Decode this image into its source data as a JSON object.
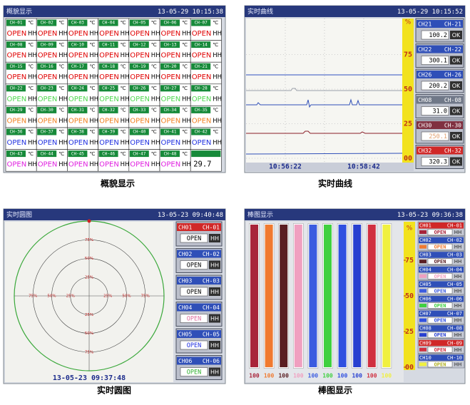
{
  "overview": {
    "title": "概貌显示",
    "time": "13-05-29 10:15:38",
    "caption": "概貌显示",
    "value_colors": [
      "#e00000",
      "#e00000",
      "#e00000",
      "#50d850",
      "#f08020",
      "#2030e0",
      "#e020e0"
    ],
    "channels": [
      {
        "name": "CH-01",
        "unit": "℃",
        "value": "OPEN",
        "alarm": "HH"
      },
      {
        "name": "CH-02",
        "unit": "℃",
        "value": "OPEN",
        "alarm": "HH"
      },
      {
        "name": "CH-03",
        "unit": "℃",
        "value": "OPEN",
        "alarm": "HH"
      },
      {
        "name": "CH-04",
        "unit": "℃",
        "value": "OPEN",
        "alarm": "HH"
      },
      {
        "name": "CH-05",
        "unit": "℃",
        "value": "OPEN",
        "alarm": "HH"
      },
      {
        "name": "CH-06",
        "unit": "℃",
        "value": "OPEN",
        "alarm": "HH"
      },
      {
        "name": "CH-07",
        "unit": "℃",
        "value": "OPEN",
        "alarm": "HH"
      },
      {
        "name": "CH-08",
        "unit": "℃",
        "value": "OPEN",
        "alarm": "HH"
      },
      {
        "name": "CH-09",
        "unit": "℃",
        "value": "OPEN",
        "alarm": "HH"
      },
      {
        "name": "CH-10",
        "unit": "℃",
        "value": "OPEN",
        "alarm": "HH"
      },
      {
        "name": "CH-11",
        "unit": "℃",
        "value": "OPEN",
        "alarm": "HH"
      },
      {
        "name": "CH-12",
        "unit": "℃",
        "value": "OPEN",
        "alarm": "HH"
      },
      {
        "name": "CH-13",
        "unit": "℃",
        "value": "OPEN",
        "alarm": "HH"
      },
      {
        "name": "CH-14",
        "unit": "℃",
        "value": "OPEN",
        "alarm": "HH"
      },
      {
        "name": "CH-15",
        "unit": "℃",
        "value": "OPEN",
        "alarm": "HH"
      },
      {
        "name": "CH-16",
        "unit": "℃",
        "value": "OPEN",
        "alarm": "HH"
      },
      {
        "name": "CH-17",
        "unit": "℃",
        "value": "OPEN",
        "alarm": "HH"
      },
      {
        "name": "CH-18",
        "unit": "℃",
        "value": "OPEN",
        "alarm": "HH"
      },
      {
        "name": "CH-19",
        "unit": "℃",
        "value": "OPEN",
        "alarm": "HH"
      },
      {
        "name": "CH-20",
        "unit": "℃",
        "value": "OPEN",
        "alarm": "HH"
      },
      {
        "name": "CH-21",
        "unit": "℃",
        "value": "OPEN",
        "alarm": "HH"
      },
      {
        "name": "CH-22",
        "unit": "℃",
        "value": "OPEN",
        "alarm": "HH"
      },
      {
        "name": "CH-23",
        "unit": "℃",
        "value": "OPEN",
        "alarm": "HH"
      },
      {
        "name": "CH-24",
        "unit": "℃",
        "value": "OPEN",
        "alarm": "HH"
      },
      {
        "name": "CH-25",
        "unit": "℃",
        "value": "OPEN",
        "alarm": "HH"
      },
      {
        "name": "CH-26",
        "unit": "℃",
        "value": "OPEN",
        "alarm": "HH"
      },
      {
        "name": "CH-27",
        "unit": "℃",
        "value": "OPEN",
        "alarm": "HH"
      },
      {
        "name": "CH-28",
        "unit": "℃",
        "value": "OPEN",
        "alarm": "HH"
      },
      {
        "name": "CH-29",
        "unit": "℃",
        "value": "OPEN",
        "alarm": "HH"
      },
      {
        "name": "CH-30",
        "unit": "℃",
        "value": "OPEN",
        "alarm": "HH"
      },
      {
        "name": "CH-31",
        "unit": "℃",
        "value": "OPEN",
        "alarm": "HH"
      },
      {
        "name": "CH-32",
        "unit": "℃",
        "value": "OPEN",
        "alarm": "HH"
      },
      {
        "name": "CH-33",
        "unit": "℃",
        "value": "OPEN",
        "alarm": "HH"
      },
      {
        "name": "CH-34",
        "unit": "℃",
        "value": "OPEN",
        "alarm": "HH"
      },
      {
        "name": "CH-35",
        "unit": "℃",
        "value": "OPEN",
        "alarm": "HH"
      },
      {
        "name": "CH-36",
        "unit": "℃",
        "value": "OPEN",
        "alarm": "HH"
      },
      {
        "name": "CH-37",
        "unit": "℃",
        "value": "OPEN",
        "alarm": "HH"
      },
      {
        "name": "CH-38",
        "unit": "℃",
        "value": "OPEN",
        "alarm": "HH"
      },
      {
        "name": "CH-39",
        "unit": "℃",
        "value": "OPEN",
        "alarm": "HH"
      },
      {
        "name": "CH-40",
        "unit": "℃",
        "value": "OPEN",
        "alarm": "HH"
      },
      {
        "name": "CH-41",
        "unit": "℃",
        "value": "OPEN",
        "alarm": "HH"
      },
      {
        "name": "CH-42",
        "unit": "℃",
        "value": "OPEN",
        "alarm": "HH"
      },
      {
        "name": "CH-43",
        "unit": "℃",
        "value": "OPEN",
        "alarm": "HH"
      },
      {
        "name": "CH-44",
        "unit": "℃",
        "value": "OPEN",
        "alarm": "HH"
      },
      {
        "name": "CH-45",
        "unit": "℃",
        "value": "OPEN",
        "alarm": "HH"
      },
      {
        "name": "CH-46",
        "unit": "℃",
        "value": "OPEN",
        "alarm": "HH"
      },
      {
        "name": "CH-47",
        "unit": "℃",
        "value": "OPEN",
        "alarm": "HH"
      },
      {
        "name": "CH-48",
        "unit": "℃",
        "value": "OPEN",
        "alarm": "HH"
      }
    ],
    "last_value": "29.7"
  },
  "trend": {
    "title": "实时曲线",
    "time": "13-05-29 10:15:52",
    "caption": "实时曲线",
    "unit": "%",
    "ylim": [
      0,
      100
    ],
    "yticks": [
      75,
      50,
      25,
      {
        "value": 0,
        "label": "00"
      }
    ],
    "times": [
      "10:56:22",
      "10:58:42"
    ],
    "channels": [
      {
        "tag": "CH21",
        "name": "CH-21",
        "value": "100.2",
        "status": "OK",
        "color": "#2f4fb8"
      },
      {
        "tag": "CH22",
        "name": "CH-22",
        "value": "300.1",
        "status": "OK",
        "color": "#2f4fb8"
      },
      {
        "tag": "CH26",
        "name": "CH-26",
        "value": "200.2",
        "status": "OK",
        "color": "#2f4fb8"
      },
      {
        "tag": "CH08",
        "name": "CH-08",
        "value": "31.0",
        "status": "OK",
        "color": "#707888"
      },
      {
        "tag": "CH30",
        "name": "CH-30",
        "value": "250.1",
        "status": "OK",
        "color": "#803040"
      },
      {
        "tag": "CH32",
        "name": "CH-32",
        "value": "320.3",
        "status": "OK",
        "color": "#d02828"
      }
    ]
  },
  "circle": {
    "title": "实时圆图",
    "time": "13-05-23 09:40:48",
    "caption": "实时圆图",
    "date": "13-05-23 09:37:48",
    "rlim": [
      0,
      100
    ],
    "rings": [
      {
        "value": 75,
        "label": "75%"
      },
      {
        "value": 50,
        "label": "50%"
      },
      {
        "value": 25,
        "label": "25%"
      }
    ],
    "channels": [
      {
        "tag": "CH01",
        "name": "CH-01",
        "value": "OPEN",
        "alarm": "HH",
        "color": "#d02828",
        "value_color": "#000000"
      },
      {
        "tag": "CH02",
        "name": "CH-02",
        "value": "OPEN",
        "alarm": "HH",
        "color": "#2f4fb8",
        "value_color": "#000000"
      },
      {
        "tag": "CH03",
        "name": "CH-03",
        "value": "OPEN",
        "alarm": "HH",
        "color": "#2f4fb8",
        "value_color": "#000000"
      },
      {
        "tag": "CH04",
        "name": "CH-04",
        "value": "OPEN",
        "alarm": "HH",
        "color": "#2f4fb8",
        "value_color": "#e070a0"
      },
      {
        "tag": "CH05",
        "name": "CH-05",
        "value": "OPEN",
        "alarm": "HH",
        "color": "#2f4fb8",
        "value_color": "#2030e0"
      },
      {
        "tag": "CH06",
        "name": "CH-06",
        "value": "OPEN",
        "alarm": "HH",
        "color": "#2f4fb8",
        "value_color": "#30b030"
      }
    ]
  },
  "bargraph": {
    "title": "棒图显示",
    "time": "13-05-23 09:36:38",
    "caption": "棒图显示",
    "unit": "%",
    "ylim": [
      0,
      100
    ],
    "yticks": [
      75,
      50,
      25,
      {
        "value": 0,
        "label": "00"
      }
    ],
    "values": [
      100,
      100,
      100,
      100,
      100,
      100,
      100,
      100,
      100,
      100
    ],
    "colors": [
      "#a8243a",
      "#f07a30",
      "#5a1e22",
      "#f0a0c0",
      "#3c5ce0",
      "#40d040",
      "#3050e0",
      "#2840d0",
      "#d03040",
      "#f0f040"
    ],
    "channels": [
      {
        "tag": "CH01",
        "name": "CH-01",
        "value": "OPEN",
        "alarm": "HH"
      },
      {
        "tag": "CH02",
        "name": "CH-02",
        "value": "OPEN",
        "alarm": "HH"
      },
      {
        "tag": "CH03",
        "name": "CH-03",
        "value": "OPEN",
        "alarm": "HH"
      },
      {
        "tag": "CH04",
        "name": "CH-04",
        "value": "OPEN",
        "alarm": "HH"
      },
      {
        "tag": "CH05",
        "name": "CH-05",
        "value": "OPEN",
        "alarm": "HH"
      },
      {
        "tag": "CH06",
        "name": "CH-06",
        "value": "OPEN",
        "alarm": "HH"
      },
      {
        "tag": "CH07",
        "name": "CH-07",
        "value": "OPEN",
        "alarm": "HH"
      },
      {
        "tag": "CH08",
        "name": "CH-08",
        "value": "OPEN",
        "alarm": "HH"
      },
      {
        "tag": "CH09",
        "name": "CH-09",
        "value": "OPEN",
        "alarm": "HH"
      },
      {
        "tag": "CH10",
        "name": "CH-10",
        "value": "OPEN",
        "alarm": "HH"
      }
    ]
  }
}
